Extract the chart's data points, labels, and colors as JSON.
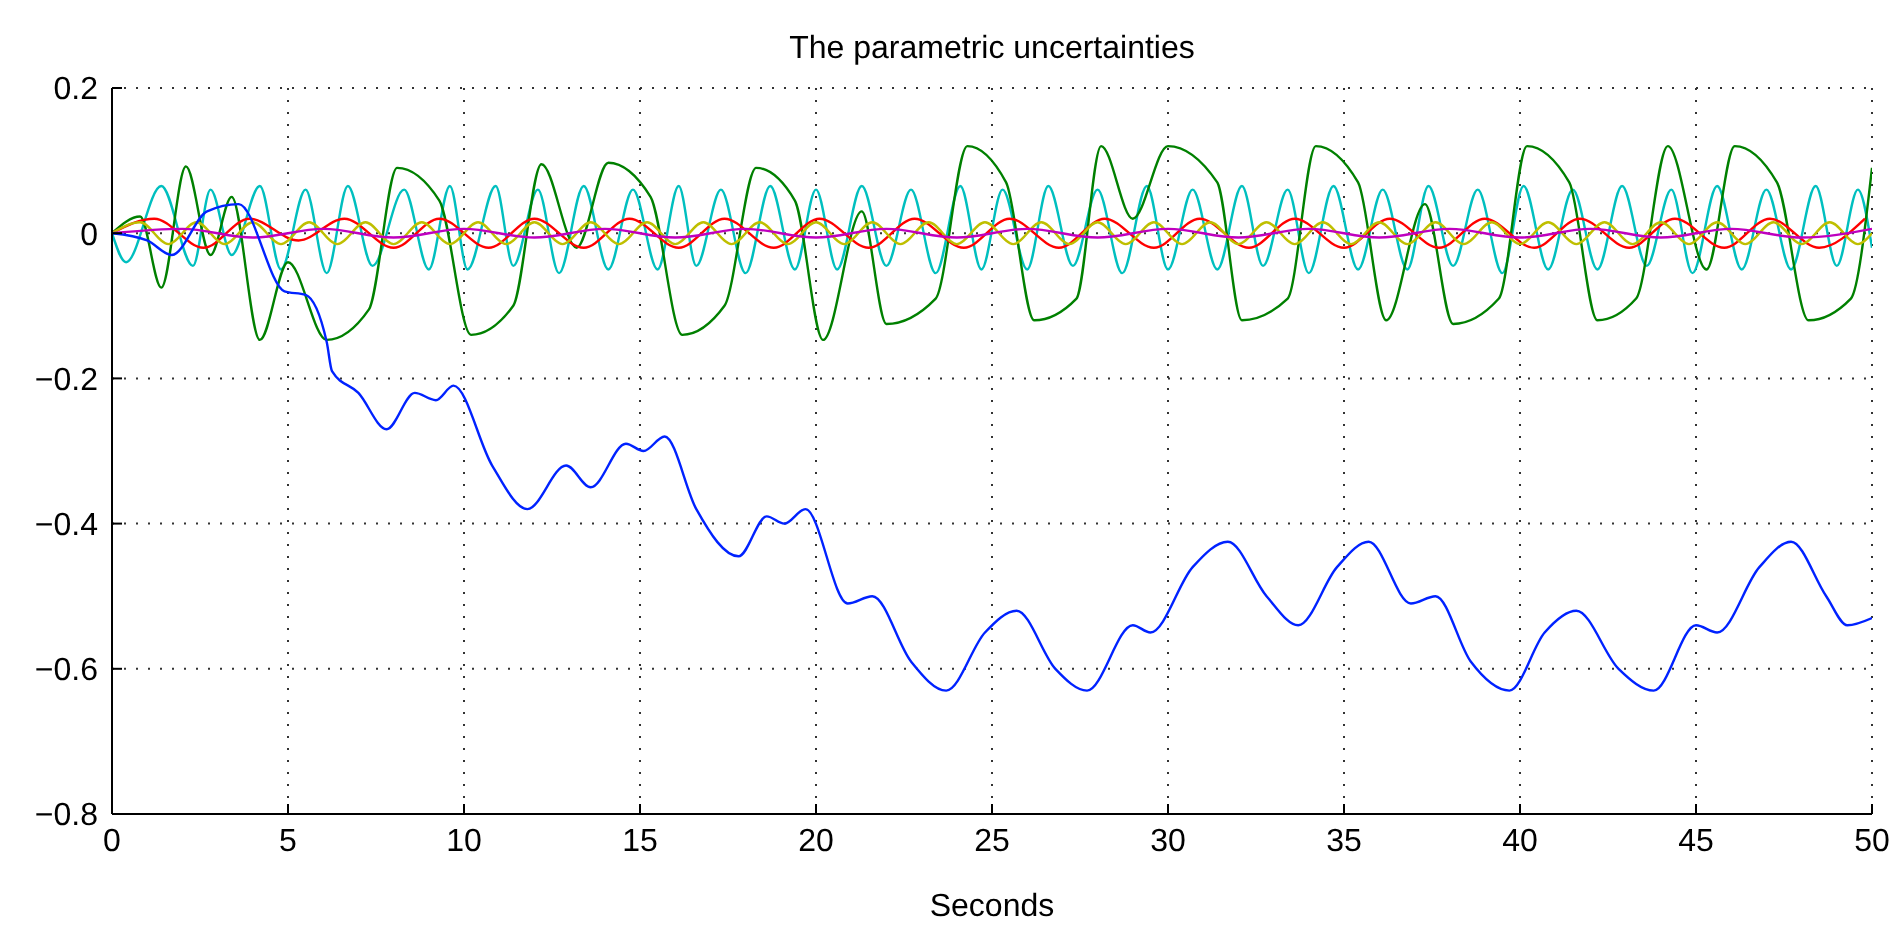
{
  "chart_data": {
    "type": "line",
    "title": "The parametric uncertainties",
    "xlabel": "Seconds",
    "xlim": [
      0,
      50
    ],
    "xticks": [
      0,
      5,
      10,
      15,
      20,
      25,
      30,
      35,
      40,
      45,
      50
    ],
    "ylim": [
      -0.8,
      0.2
    ],
    "yticks": [
      {
        "value": -0.8,
        "label": "−0.8"
      },
      {
        "value": -0.6,
        "label": "−0.6"
      },
      {
        "value": -0.4,
        "label": "−0.4"
      },
      {
        "value": -0.2,
        "label": "−0.2"
      },
      0,
      0.2
    ],
    "grid": true,
    "line_style": "solid",
    "marker": "none",
    "series": [
      {
        "color": "#00bfbf",
        "x": [
          0,
          0.4,
          1.4,
          2.3,
          2.8,
          3.4,
          4.2,
          4.8,
          5.5,
          6.1,
          6.7,
          7.4,
          8.3,
          9.0,
          9.6,
          10.1,
          10.9,
          11.4,
          12.1,
          12.7,
          13.4,
          14.1,
          14.8,
          15.5,
          16.1,
          16.6,
          17.3,
          18.0,
          18.7,
          19.4,
          20.0,
          20.6,
          21.3,
          22.0,
          22.7,
          23.4,
          24.1,
          24.7,
          25.3,
          26.0,
          26.6,
          27.3,
          28.0,
          28.7,
          29.4,
          30.0,
          30.7,
          31.4,
          32.1,
          32.7,
          33.4,
          34.0,
          34.7,
          35.4,
          36.1,
          36.8,
          37.4,
          38.1,
          38.8,
          39.5,
          40.1,
          40.8,
          41.5,
          42.2,
          42.9,
          43.6,
          44.3,
          44.9,
          45.6,
          46.3,
          47.0,
          47.7,
          48.4,
          49.0,
          49.6,
          50
        ],
        "values": [
          0,
          -0.04,
          0.065,
          -0.045,
          0.06,
          -0.03,
          0.065,
          -0.05,
          0.06,
          -0.055,
          0.065,
          -0.045,
          0.06,
          -0.05,
          0.065,
          -0.05,
          0.065,
          -0.045,
          0.06,
          -0.055,
          0.065,
          -0.05,
          0.06,
          -0.05,
          0.065,
          -0.045,
          0.06,
          -0.055,
          0.065,
          -0.05,
          0.06,
          -0.05,
          0.065,
          -0.045,
          0.06,
          -0.055,
          0.065,
          -0.05,
          0.06,
          -0.05,
          0.065,
          -0.045,
          0.06,
          -0.055,
          0.065,
          -0.05,
          0.06,
          -0.05,
          0.065,
          -0.045,
          0.06,
          -0.055,
          0.065,
          -0.05,
          0.06,
          -0.05,
          0.065,
          -0.045,
          0.06,
          -0.055,
          0.065,
          -0.05,
          0.06,
          -0.05,
          0.065,
          -0.045,
          0.06,
          -0.055,
          0.065,
          -0.05,
          0.06,
          -0.05,
          0.065,
          -0.045,
          0.06,
          -0.02
        ]
      },
      {
        "color": "#008000",
        "x": [
          0,
          0.8,
          1.4,
          2.1,
          2.8,
          3.4,
          4.2,
          5.0,
          6.1,
          7.3,
          8.1,
          9.3,
          10.2,
          11.4,
          12.2,
          13.2,
          14.1,
          15.3,
          16.2,
          17.4,
          18.3,
          19.4,
          20.2,
          21.3,
          22.0,
          23.4,
          24.3,
          25.4,
          26.2,
          27.4,
          28.1,
          29.0,
          30.0,
          31.4,
          32.1,
          33.4,
          34.2,
          35.4,
          36.2,
          37.3,
          38.1,
          39.4,
          40.2,
          41.4,
          42.2,
          43.3,
          44.2,
          45.3,
          46.1,
          47.3,
          48.2,
          49.4,
          50
        ],
        "values": [
          0,
          0.023,
          -0.075,
          0.092,
          -0.03,
          0.05,
          -0.147,
          -0.04,
          -0.147,
          -0.105,
          0.09,
          0.045,
          -0.14,
          -0.1,
          0.095,
          -0.02,
          0.097,
          0.05,
          -0.14,
          -0.1,
          0.09,
          0.045,
          -0.147,
          0.03,
          -0.125,
          -0.09,
          0.12,
          0.07,
          -0.12,
          -0.09,
          0.12,
          0.02,
          0.12,
          0.07,
          -0.12,
          -0.09,
          0.12,
          0.07,
          -0.12,
          0.04,
          -0.125,
          -0.09,
          0.12,
          0.07,
          -0.12,
          -0.09,
          0.12,
          -0.05,
          0.12,
          0.07,
          -0.12,
          -0.09,
          0.09
        ]
      },
      {
        "color": "#ff0000",
        "x": [
          0,
          1.2,
          2.6,
          3.9,
          5.3,
          6.6,
          8.0,
          9.3,
          10.7,
          12.0,
          13.4,
          14.7,
          16.1,
          17.4,
          18.8,
          20.1,
          21.5,
          22.8,
          24.2,
          25.5,
          26.9,
          28.2,
          29.6,
          30.9,
          32.3,
          33.6,
          35.0,
          36.3,
          37.7,
          39.0,
          40.4,
          41.7,
          43.1,
          44.4,
          45.8,
          47.1,
          48.5,
          49.8
        ],
        "values": [
          0,
          0.02,
          -0.02,
          0.02,
          -0.01,
          0.02,
          -0.02,
          0.02,
          -0.02,
          0.02,
          -0.02,
          0.02,
          -0.02,
          0.02,
          -0.02,
          0.02,
          -0.02,
          0.02,
          -0.02,
          0.02,
          -0.02,
          0.02,
          -0.02,
          0.02,
          -0.02,
          0.02,
          -0.02,
          0.02,
          -0.02,
          0.02,
          -0.02,
          0.02,
          -0.02,
          0.02,
          -0.02,
          0.02,
          -0.02,
          0.02
        ]
      },
      {
        "color": "#bfbf00",
        "x": [
          0,
          0.8,
          1.6,
          2.4,
          3.2,
          4.0,
          4.8,
          5.6,
          6.4,
          7.2,
          8.0,
          8.8,
          9.6,
          10.4,
          11.2,
          12.0,
          12.8,
          13.6,
          14.4,
          15.2,
          16.0,
          16.8,
          17.6,
          18.4,
          19.2,
          20.0,
          20.8,
          21.6,
          22.4,
          23.2,
          24.0,
          24.8,
          25.6,
          26.4,
          27.2,
          28.0,
          28.8,
          29.6,
          30.4,
          31.2,
          32.0,
          32.8,
          33.6,
          34.4,
          35.2,
          36.0,
          36.8,
          37.6,
          38.4,
          39.2,
          40.0,
          40.8,
          41.6,
          42.4,
          43.2,
          44.0,
          44.8,
          45.6,
          46.4,
          47.2,
          48.0,
          48.8,
          49.6,
          50
        ],
        "values": [
          0,
          0.015,
          -0.015,
          0.015,
          -0.015,
          0.015,
          -0.015,
          0.015,
          -0.015,
          0.015,
          -0.015,
          0.015,
          -0.015,
          0.015,
          -0.015,
          0.015,
          -0.015,
          0.015,
          -0.015,
          0.015,
          -0.015,
          0.015,
          -0.015,
          0.015,
          -0.015,
          0.015,
          -0.015,
          0.015,
          -0.015,
          0.015,
          -0.015,
          0.015,
          -0.015,
          0.015,
          -0.015,
          0.015,
          -0.015,
          0.015,
          -0.015,
          0.015,
          -0.015,
          0.015,
          -0.015,
          0.015,
          -0.015,
          0.015,
          -0.015,
          0.015,
          -0.015,
          0.015,
          -0.015,
          0.015,
          -0.015,
          0.015,
          -0.015,
          0.015,
          -0.015,
          0.015,
          -0.015,
          0.015,
          -0.015,
          0.015,
          -0.015,
          0
        ]
      },
      {
        "color": "#bf00bf",
        "x": [
          0,
          2,
          4,
          6,
          8,
          10,
          12,
          14,
          16,
          18,
          20,
          22,
          24,
          26,
          28,
          30,
          32,
          34,
          36,
          38,
          40,
          42,
          44,
          46,
          48,
          50
        ],
        "values": [
          0,
          0.006,
          -0.006,
          0.006,
          -0.006,
          0.006,
          -0.006,
          0.006,
          -0.006,
          0.006,
          -0.006,
          0.006,
          -0.006,
          0.006,
          -0.006,
          0.006,
          -0.006,
          0.006,
          -0.006,
          0.006,
          -0.006,
          0.006,
          -0.006,
          0.006,
          -0.006,
          0.006
        ]
      },
      {
        "color": "#0022ff",
        "x": [
          0,
          1.0,
          1.7,
          2.7,
          3.6,
          4.9,
          5.5,
          6.1,
          6.25,
          7.0,
          7.8,
          8.6,
          9.2,
          9.7,
          10.8,
          11.8,
          12.9,
          13.6,
          14.6,
          15.1,
          15.7,
          16.6,
          17.8,
          18.6,
          19.1,
          19.7,
          20.9,
          21.6,
          22.7,
          23.7,
          24.8,
          25.7,
          26.8,
          27.7,
          29.0,
          29.5,
          30.7,
          31.7,
          32.8,
          33.7,
          34.8,
          35.7,
          36.9,
          37.6,
          38.6,
          39.7,
          40.7,
          41.6,
          42.8,
          43.8,
          45.0,
          45.6,
          46.8,
          47.7,
          48.7,
          49.3,
          50
        ],
        "values": [
          0,
          -0.01,
          -0.03,
          0.03,
          0.04,
          -0.08,
          -0.085,
          -0.15,
          -0.19,
          -0.22,
          -0.27,
          -0.22,
          -0.23,
          -0.21,
          -0.32,
          -0.38,
          -0.32,
          -0.35,
          -0.29,
          -0.3,
          -0.28,
          -0.38,
          -0.445,
          -0.39,
          -0.4,
          -0.38,
          -0.51,
          -0.5,
          -0.59,
          -0.63,
          -0.55,
          -0.52,
          -0.6,
          -0.63,
          -0.54,
          -0.55,
          -0.46,
          -0.425,
          -0.5,
          -0.54,
          -0.46,
          -0.425,
          -0.51,
          -0.5,
          -0.59,
          -0.63,
          -0.55,
          -0.52,
          -0.6,
          -0.63,
          -0.54,
          -0.55,
          -0.46,
          -0.425,
          -0.5,
          -0.54,
          -0.53
        ]
      }
    ]
  }
}
